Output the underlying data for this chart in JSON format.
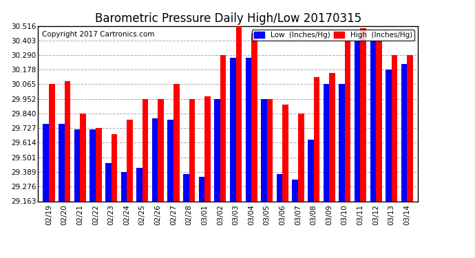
{
  "title": "Barometric Pressure Daily High/Low 20170315",
  "copyright": "Copyright 2017 Cartronics.com",
  "legend_low": "Low  (Inches/Hg)",
  "legend_high": "High  (Inches/Hg)",
  "dates": [
    "02/19",
    "02/20",
    "02/21",
    "02/22",
    "02/23",
    "02/24",
    "02/25",
    "02/26",
    "02/27",
    "02/28",
    "03/01",
    "03/02",
    "03/03",
    "03/04",
    "03/05",
    "03/06",
    "03/07",
    "03/08",
    "03/09",
    "03/10",
    "03/11",
    "03/12",
    "03/13",
    "03/14"
  ],
  "low": [
    29.76,
    29.76,
    29.72,
    29.72,
    29.46,
    29.39,
    29.42,
    29.8,
    29.79,
    29.37,
    29.35,
    29.95,
    30.27,
    30.27,
    29.95,
    29.37,
    29.33,
    29.64,
    30.07,
    30.07,
    30.4,
    30.4,
    30.18,
    30.22
  ],
  "high": [
    30.07,
    30.09,
    29.84,
    29.73,
    29.68,
    29.79,
    29.95,
    29.95,
    30.07,
    29.95,
    29.97,
    30.29,
    30.52,
    30.46,
    29.95,
    29.91,
    29.84,
    30.12,
    30.15,
    30.4,
    30.5,
    30.4,
    30.29,
    30.29
  ],
  "ylim_min": 29.163,
  "ylim_max": 30.516,
  "yticks": [
    29.163,
    29.276,
    29.389,
    29.501,
    29.614,
    29.727,
    29.84,
    29.952,
    30.065,
    30.178,
    30.29,
    30.403,
    30.516
  ],
  "color_low": "#0000ff",
  "color_high": "#ff0000",
  "background_color": "#ffffff",
  "grid_color": "#aaaaaa",
  "title_fontsize": 12,
  "copyright_fontsize": 7.5,
  "bar_width": 0.38
}
